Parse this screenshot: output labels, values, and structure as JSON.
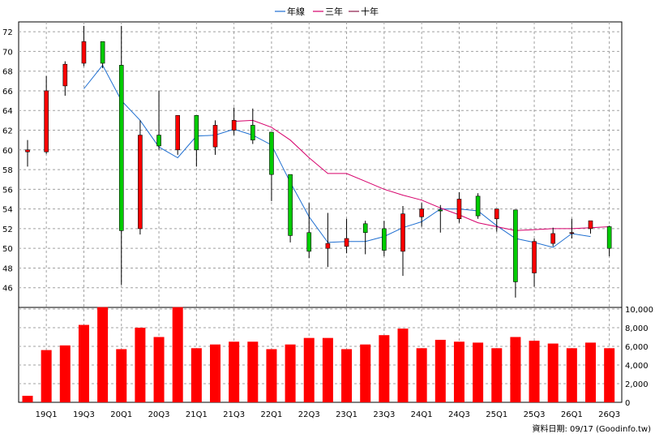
{
  "legend": [
    {
      "label": "年線",
      "color": "#1f6fd1"
    },
    {
      "label": "三年",
      "color": "#d6006b"
    },
    {
      "label": "十年",
      "color": "#8b1a4a"
    }
  ],
  "footer": "資料日期: 09/17  (Goodinfo.tw)",
  "colors": {
    "up": "#ff0000",
    "down": "#00cc00",
    "wick": "#000000",
    "volume": "#ff0000",
    "grid": "#a0a0a0"
  },
  "chart_data": {
    "type": "candlestick",
    "x_tick_labels": [
      "19Q1",
      "19Q3",
      "20Q1",
      "20Q3",
      "21Q1",
      "21Q3",
      "22Q1",
      "22Q3",
      "23Q1",
      "23Q3",
      "24Q1",
      "24Q3",
      "25Q1",
      "25Q3",
      "26Q1",
      "26Q3"
    ],
    "price_ylim": [
      44,
      73
    ],
    "price_ticks": [
      46,
      48,
      50,
      52,
      54,
      56,
      58,
      60,
      62,
      64,
      66,
      68,
      70,
      72
    ],
    "volume_ylim": [
      0,
      10000
    ],
    "volume_tick_labels": [
      "0",
      "2,000",
      "4,000",
      "6,000",
      "8,000",
      "10,000"
    ],
    "volume_ticks": [
      0,
      2000,
      4000,
      6000,
      8000,
      10000
    ],
    "candles": [
      {
        "o": 59.8,
        "c": 60.0,
        "h": 61.0,
        "l": 58.3,
        "v": 700
      },
      {
        "o": 59.8,
        "c": 66.0,
        "h": 67.5,
        "l": 59.6,
        "v": 5600
      },
      {
        "o": 66.5,
        "c": 68.7,
        "h": 69.0,
        "l": 65.5,
        "v": 6100
      },
      {
        "o": 68.8,
        "c": 71.0,
        "h": 72.6,
        "l": 68.5,
        "v": 8300
      },
      {
        "o": 71.0,
        "c": 68.8,
        "h": 71.0,
        "l": 68.3,
        "v": 10200
      },
      {
        "o": 68.6,
        "c": 51.8,
        "h": 72.6,
        "l": 46.3,
        "v": 5700
      },
      {
        "o": 52.0,
        "c": 61.5,
        "h": 63.0,
        "l": 51.4,
        "v": 8000
      },
      {
        "o": 61.5,
        "c": 60.4,
        "h": 66.0,
        "l": 60.0,
        "v": 7000
      },
      {
        "o": 60.0,
        "c": 63.5,
        "h": 63.5,
        "l": 59.5,
        "v": 10200
      },
      {
        "o": 63.5,
        "c": 60.0,
        "h": 63.5,
        "l": 58.3,
        "v": 5800
      },
      {
        "o": 60.3,
        "c": 62.5,
        "h": 63.0,
        "l": 59.5,
        "v": 6200
      },
      {
        "o": 62.0,
        "c": 63.0,
        "h": 64.3,
        "l": 61.5,
        "v": 6500
      },
      {
        "o": 62.5,
        "c": 61.0,
        "h": 64.2,
        "l": 60.6,
        "v": 6500
      },
      {
        "o": 61.8,
        "c": 57.5,
        "h": 61.8,
        "l": 54.8,
        "v": 5700
      },
      {
        "o": 57.5,
        "c": 51.3,
        "h": 57.5,
        "l": 50.6,
        "v": 6200
      },
      {
        "o": 51.6,
        "c": 49.7,
        "h": 54.6,
        "l": 49.0,
        "v": 6900
      },
      {
        "o": 50.0,
        "c": 50.5,
        "h": 53.6,
        "l": 48.1,
        "v": 6900
      },
      {
        "o": 50.2,
        "c": 51.0,
        "h": 53.0,
        "l": 49.5,
        "v": 5700
      },
      {
        "o": 52.5,
        "c": 51.6,
        "h": 52.8,
        "l": 49.4,
        "v": 6200
      },
      {
        "o": 52.0,
        "c": 49.8,
        "h": 52.8,
        "l": 49.2,
        "v": 7200
      },
      {
        "o": 49.7,
        "c": 53.5,
        "h": 54.3,
        "l": 47.2,
        "v": 7900
      },
      {
        "o": 53.2,
        "c": 54.0,
        "h": 54.6,
        "l": 52.2,
        "v": 5800
      },
      {
        "o": 53.9,
        "c": 53.8,
        "h": 54.4,
        "l": 51.6,
        "v": 6700
      },
      {
        "o": 53.0,
        "c": 55.0,
        "h": 55.7,
        "l": 52.6,
        "v": 6500
      },
      {
        "o": 55.3,
        "c": 53.3,
        "h": 55.6,
        "l": 53.0,
        "v": 6400
      },
      {
        "o": 53.0,
        "c": 54.0,
        "h": 54.0,
        "l": 51.7,
        "v": 5800
      },
      {
        "o": 53.9,
        "c": 46.6,
        "h": 53.9,
        "l": 45.0,
        "v": 7000
      },
      {
        "o": 47.5,
        "c": 50.7,
        "h": 51.0,
        "l": 46.1,
        "v": 6600
      },
      {
        "o": 50.5,
        "c": 51.5,
        "h": 52.1,
        "l": 50.2,
        "v": 6300
      },
      {
        "o": 51.6,
        "c": 51.6,
        "h": 53.0,
        "l": 51.0,
        "v": 5800
      },
      {
        "o": 52.0,
        "c": 52.8,
        "h": 52.8,
        "l": 51.5,
        "v": 6400
      },
      {
        "o": 52.2,
        "c": 50.0,
        "h": 52.3,
        "l": 49.2,
        "v": 5800
      }
    ],
    "series": [
      {
        "name": "年線",
        "color": "#1f6fd1",
        "values": [
          null,
          null,
          null,
          66.2,
          68.6,
          65.0,
          63.0,
          60.3,
          59.2,
          61.4,
          61.5,
          62.1,
          61.5,
          60.5,
          56.7,
          53.2,
          50.6,
          50.7,
          50.7,
          51.2,
          52.1,
          52.7,
          54.0,
          54.0,
          53.8,
          52.3,
          51.0,
          50.6,
          50.1,
          51.5,
          51.2,
          null
        ]
      },
      {
        "name": "三年",
        "color": "#d6006b",
        "values": [
          null,
          null,
          null,
          null,
          null,
          null,
          null,
          null,
          null,
          null,
          null,
          62.9,
          63.0,
          62.3,
          61.0,
          59.2,
          57.6,
          57.6,
          56.8,
          56.0,
          55.4,
          54.9,
          54.1,
          53.4,
          52.6,
          52.2,
          51.8,
          51.9,
          52.0,
          52.0,
          52.1,
          52.2
        ]
      }
    ]
  }
}
